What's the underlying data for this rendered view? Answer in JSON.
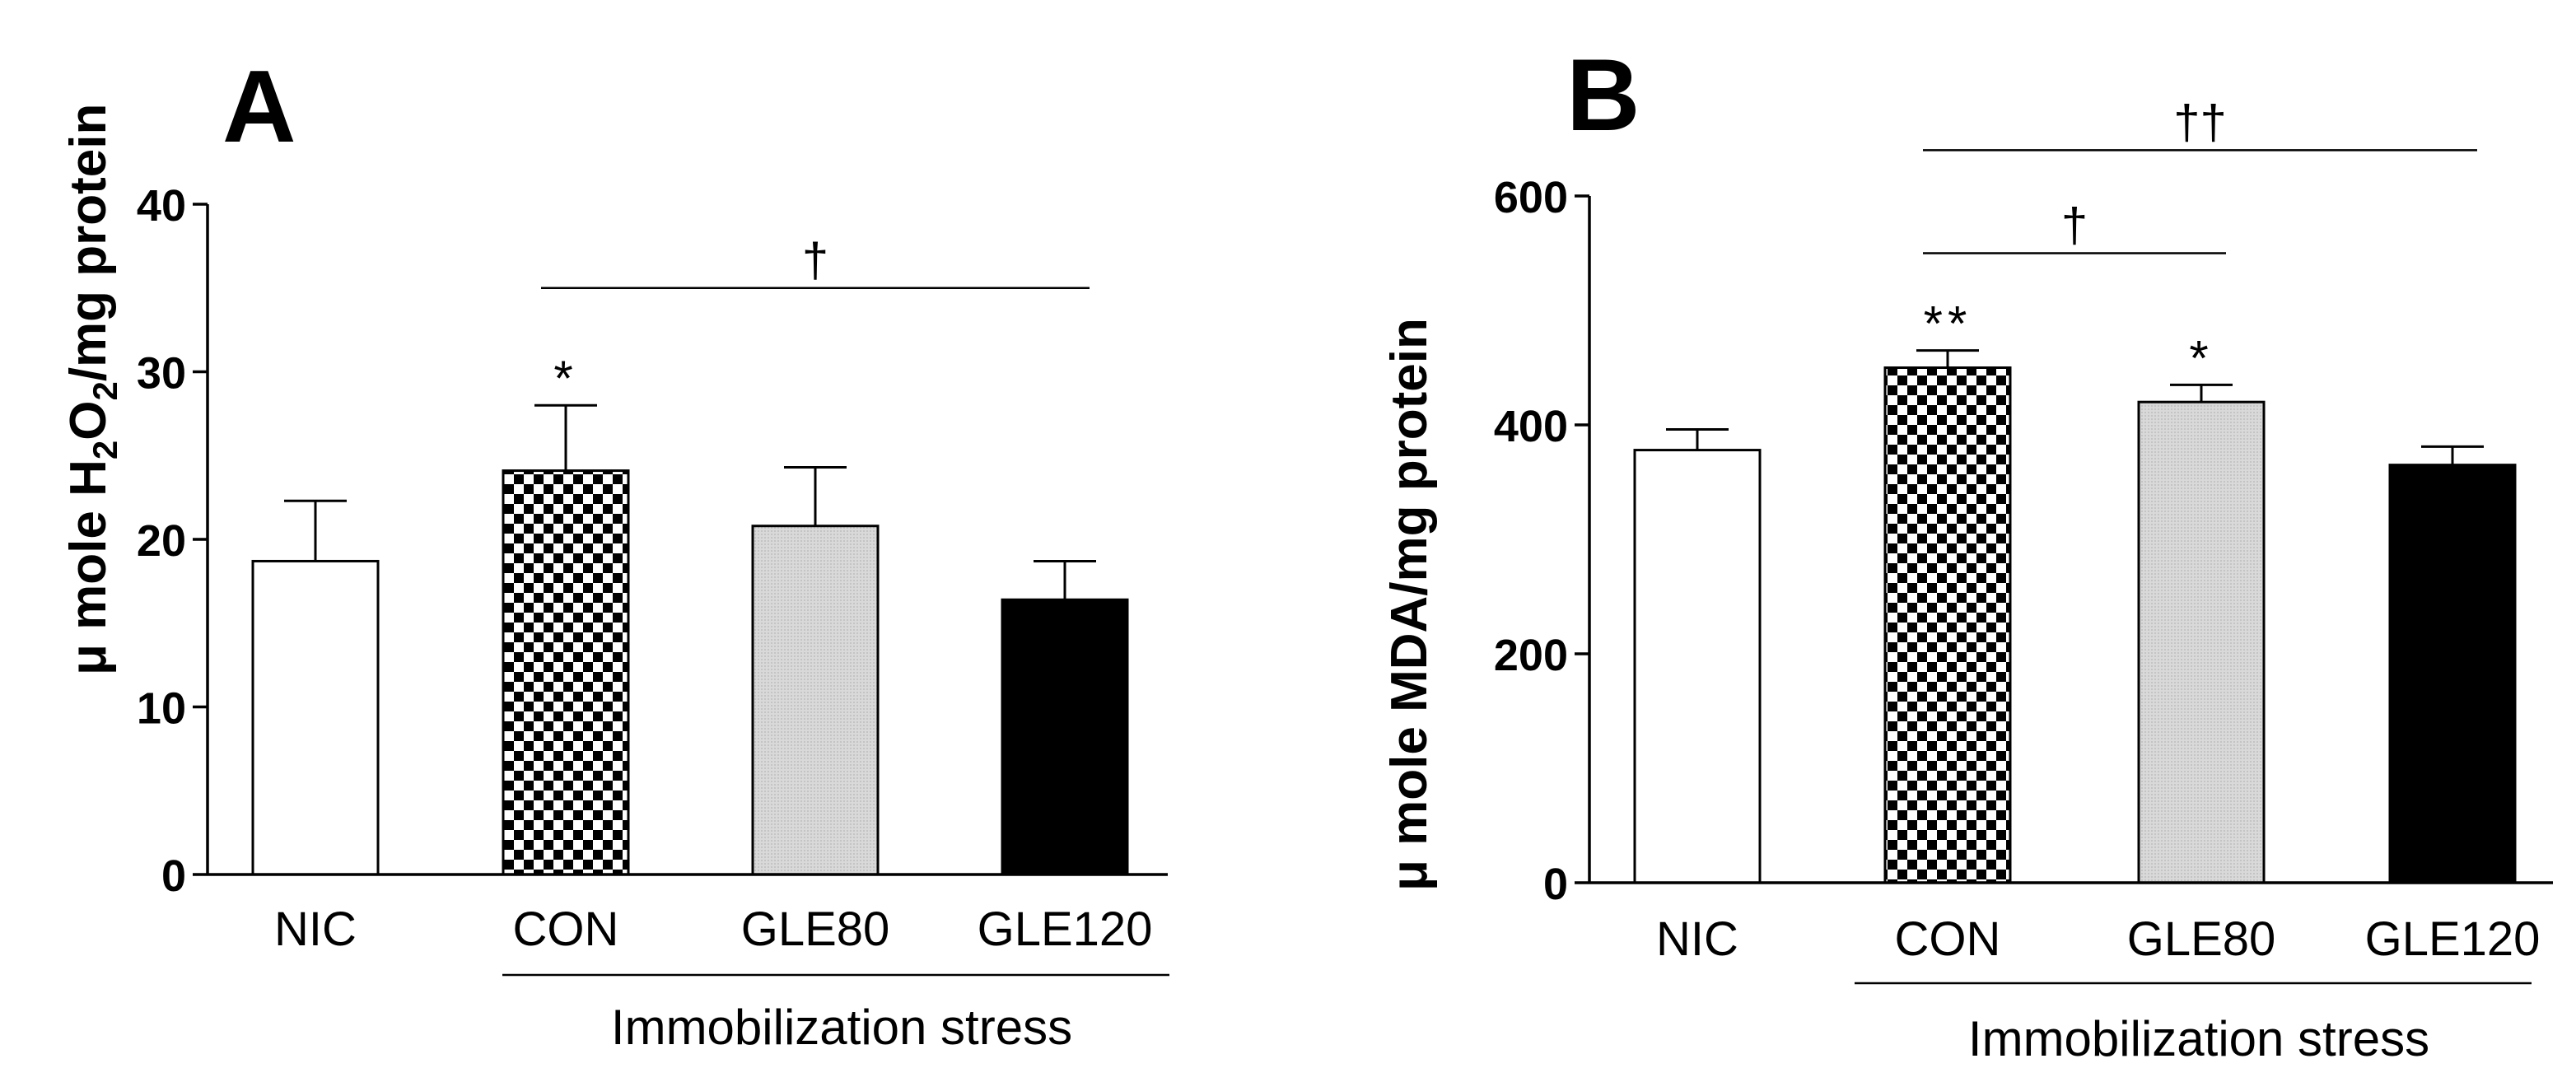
{
  "colors": {
    "ink": "#000000",
    "paper": "#ffffff",
    "gle80_fill": "#d6d6d6",
    "gle120_fill": "#000000"
  },
  "chart_data": [
    {
      "type": "bar",
      "panel_label": "A",
      "ylabel": {
        "prefix": "μ mole H",
        "sub1": "2",
        "mid": "O",
        "sub2": "2",
        "suffix": "/mg protein"
      },
      "categories": [
        "NIC",
        "CON",
        "GLE80",
        "GLE120"
      ],
      "fills": [
        "white",
        "checker",
        "light-gray",
        "black"
      ],
      "values": [
        18.7,
        24.1,
        20.8,
        16.4
      ],
      "errors": [
        3.6,
        3.9,
        3.5,
        2.3
      ],
      "ylim": [
        0,
        40
      ],
      "yticks": [
        0,
        10,
        20,
        30,
        40
      ],
      "yticklabels": [
        "0",
        "10",
        "20",
        "30",
        "40"
      ],
      "bar_marks": [
        "",
        "*",
        "",
        ""
      ],
      "brackets": [
        {
          "from": 1,
          "to": 3,
          "level": 35,
          "label": "†"
        }
      ],
      "group_label": "Immobilization stress"
    },
    {
      "type": "bar",
      "panel_label": "B",
      "ylabel": {
        "prefix": "μ mole MDA/mg protein",
        "sub1": "",
        "mid": "",
        "sub2": "",
        "suffix": ""
      },
      "categories": [
        "NIC",
        "CON",
        "GLE80",
        "GLE120"
      ],
      "fills": [
        "white",
        "checker",
        "light-gray",
        "black"
      ],
      "values": [
        378,
        450,
        420,
        365
      ],
      "errors": [
        18,
        15,
        15,
        16
      ],
      "ylim": [
        0,
        600
      ],
      "yticks": [
        0,
        200,
        400,
        600
      ],
      "yticklabels": [
        "0",
        "200",
        "400",
        "600"
      ],
      "bar_marks": [
        "",
        "**",
        "*",
        ""
      ],
      "brackets": [
        {
          "from": 1,
          "to": 2,
          "level": 550,
          "label": "†"
        },
        {
          "from": 1,
          "to": 3,
          "level": 640,
          "label": "††"
        }
      ],
      "group_label": "Immobilization stress"
    }
  ]
}
